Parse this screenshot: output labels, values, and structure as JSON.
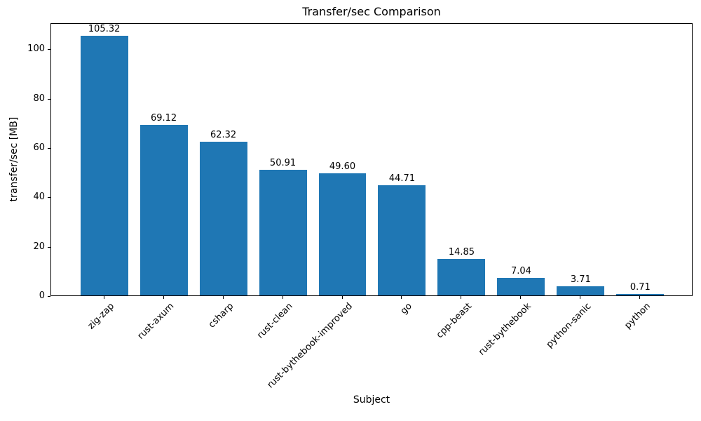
{
  "chart_data": {
    "type": "bar",
    "title": "Transfer/sec Comparison",
    "xlabel": "Subject",
    "ylabel": "transfer/sec [MB]",
    "categories": [
      "zig-zap",
      "rust-axum",
      "csharp",
      "rust-clean",
      "rust-bythebook-improved",
      "go",
      "cpp-beast",
      "rust-bythebook",
      "python-sanic",
      "python"
    ],
    "values": [
      105.32,
      69.12,
      62.32,
      50.91,
      49.6,
      44.71,
      14.85,
      7.04,
      3.71,
      0.71
    ],
    "value_labels": [
      "105.32",
      "69.12",
      "62.32",
      "50.91",
      "49.60",
      "44.71",
      "14.85",
      "7.04",
      "3.71",
      "0.71"
    ],
    "yticks": [
      0,
      20,
      40,
      60,
      80,
      100
    ],
    "ylim": [
      0,
      110.59
    ],
    "xtick_rotation_deg": 45,
    "bar_color": "#1f77b4",
    "grid": false,
    "legend": "none"
  }
}
